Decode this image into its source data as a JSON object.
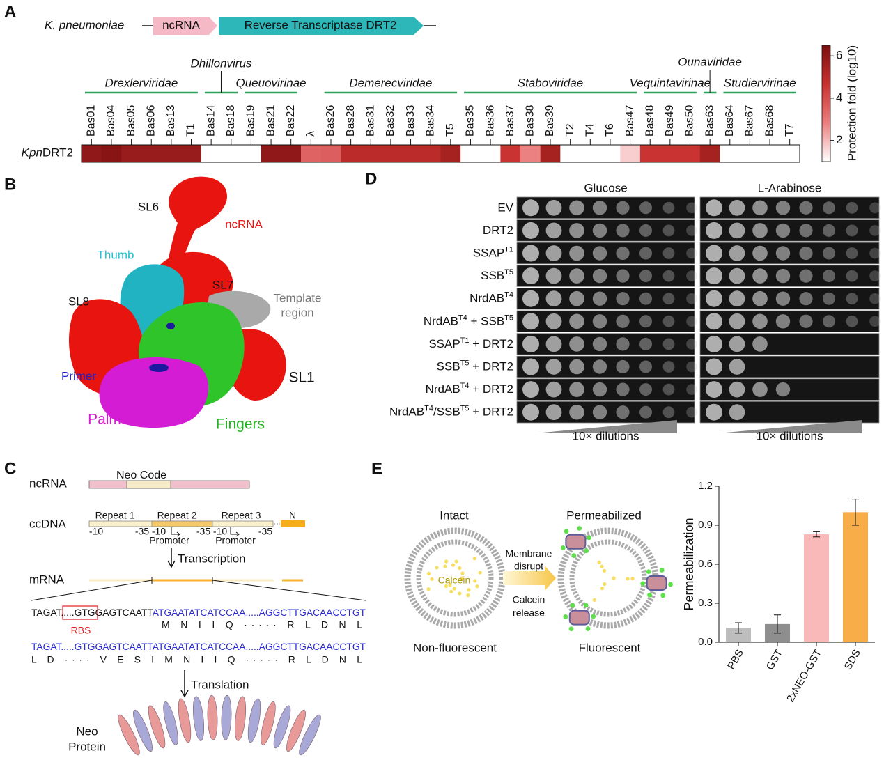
{
  "panel_labels": [
    "A",
    "B",
    "C",
    "D",
    "E"
  ],
  "panel_a": {
    "organism": "K. pneumoniae",
    "genes": [
      "ncRNA",
      "Reverse Transcriptase DRT2"
    ],
    "families": [
      "Drexlerviridae",
      "Dhillonvirus",
      "Queuovirinae",
      "Demerecviridae",
      "Staboviridae",
      "Vequintavirinae",
      "Ounaviridae",
      "Studiervirinae"
    ]
  },
  "chart_data": [
    {
      "type": "heatmap",
      "row_label_italic": "Kpn",
      "row_label": "DRT2",
      "categories": [
        "Bas01",
        "Bas04",
        "Bas05",
        "Bas06",
        "Bas13",
        "T1",
        "Bas14",
        "Bas18",
        "Bas19",
        "Bas21",
        "Bas22",
        "λ",
        "Bas26",
        "Bas28",
        "Bas31",
        "Bas32",
        "Bas33",
        "Bas34",
        "T5",
        "Bas35",
        "Bas36",
        "Bas37",
        "Bas38",
        "Bas39",
        "T2",
        "T4",
        "T6",
        "Bas47",
        "Bas48",
        "Bas49",
        "Bas50",
        "Bas63",
        "Bas64",
        "Bas67",
        "Bas68",
        "T7"
      ],
      "values": [
        6,
        6.2,
        5.8,
        5.8,
        5.8,
        5.8,
        1,
        1,
        1,
        6,
        6,
        3.5,
        3.6,
        5,
        5,
        5,
        5,
        5,
        5.5,
        1,
        1,
        4.6,
        2.8,
        5.5,
        1,
        1,
        1,
        1.7,
        4.6,
        4.6,
        4.6,
        5.5,
        1,
        1,
        1,
        1
      ],
      "zlim": [
        1,
        6.5
      ],
      "zticks": [
        2,
        4,
        6
      ],
      "colorbar_label": "Protection fold (log10)",
      "colors": [
        "#ffffff",
        "#ec7f7f",
        "#c8312f",
        "#7b0f0f"
      ]
    },
    {
      "type": "bar",
      "categories": [
        "PBS",
        "GST",
        "2xNEO-GST",
        "SDS"
      ],
      "values": [
        0.11,
        0.14,
        0.83,
        1.0
      ],
      "errors": [
        0.04,
        0.07,
        0.02,
        0.1
      ],
      "colors": [
        "#bdbdbd",
        "#8e8e8e",
        "#f9b9b9",
        "#f8ad48"
      ],
      "ylabel": "Permeabilization",
      "ylim": [
        0,
        1.2
      ],
      "yticks": [
        {
          "value": 0,
          "label": "0.0"
        },
        0.3,
        0.6,
        0.9,
        1.2
      ]
    }
  ],
  "panel_b": {
    "sl6": "SL6",
    "ncrna": "ncRNA",
    "thumb": "Thumb",
    "sl7": "SL7",
    "template": [
      "Template",
      "region"
    ],
    "sl8": "SL8",
    "primer": "Primer",
    "sl1": "SL1",
    "palm": "Palm",
    "fingers": "Fingers"
  },
  "panel_c": {
    "ncrna": "ncRNA",
    "neo_code": "Neo Code",
    "ccdna": "ccDNA",
    "repeats": [
      "Repeat 1",
      "Repeat 2",
      "Repeat 3"
    ],
    "n": "N",
    "boxes": [
      "-10",
      "-35",
      "-10",
      "-35",
      "-10",
      "-35"
    ],
    "promoter": "Promoter",
    "transcription": "Transcription",
    "mrna": "mRNA",
    "seq1": [
      "TAGAT.....GT",
      "GGAGTC",
      "AATT",
      "ATGAATATCATCCAA.....AGGCTTGACAACCTGT"
    ],
    "rbs": "RBS",
    "aa1": "M   N   I   I   Q  ·····  R   L   D   N   L",
    "seq2": [
      "TAGAT.....GT",
      "GGAGTC",
      "AATTATGAATATCATCCAA.....AGGCTTGACAACCTGT"
    ],
    "aa2": "L   D  ····  V   E   S   I   M   N   I   I   Q  ·····  R   L   D   N   L",
    "translation": "Translation",
    "protein": [
      "Neo",
      "Protein"
    ]
  },
  "panel_d": {
    "media": [
      "Glucose",
      "L-Arabinose"
    ],
    "strains": [
      [
        "EV"
      ],
      [
        "DRT2"
      ],
      [
        "SSAP",
        "T1"
      ],
      [
        "SSB",
        "T5"
      ],
      [
        "NrdAB",
        "T4"
      ],
      [
        "NrdAB",
        "T4",
        " + SSB",
        "T5"
      ],
      [
        "SSAP",
        "T1",
        " + DRT2"
      ],
      [
        "SSB",
        "T5",
        " + DRT2"
      ],
      [
        "NrdAB",
        "T4",
        " + DRT2"
      ],
      [
        "NrdAB",
        "T4",
        "/SSB",
        "T5",
        " + DRT2"
      ]
    ],
    "dilutions": "10× dilutions"
  },
  "panel_e": {
    "intact": "Intact",
    "calcein": "Calcein",
    "non_fluorescent": "Non-fluorescent",
    "arrow_top": [
      "Membrane",
      "disrupt"
    ],
    "arrow_bottom": [
      "Calcein",
      "release"
    ],
    "permeabilized": "Permeabilized",
    "fluorescent": "Fluorescent"
  }
}
